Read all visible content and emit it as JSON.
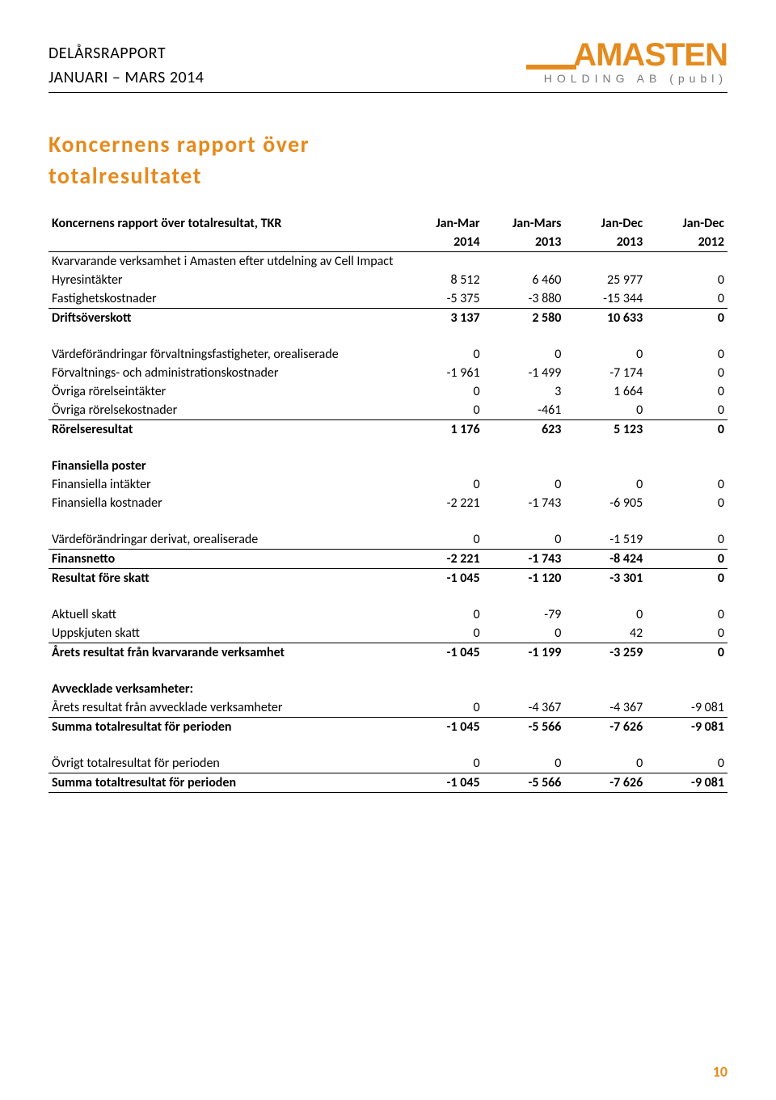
{
  "header": {
    "line1": "DELÅRSRAPPORT",
    "line2": "JANUARI – MARS 2014",
    "logo_main": "AMASTEN",
    "logo_sub": "HOLDING AB (publ)"
  },
  "section_title_l1": "Koncernens rapport över",
  "section_title_l2": "totalresultatet",
  "table": {
    "title": "Koncernens rapport över totalresultat, TKR",
    "col_top": [
      "Jan-Mar",
      "Jan-Mars",
      "Jan-Dec",
      "Jan-Dec"
    ],
    "col_bot": [
      "2014",
      "2013",
      "2013",
      "2012"
    ],
    "rows": [
      {
        "label": "Kvarvarande verksamhet i Amasten efter utdelning av Cell Impact",
        "v": [
          "",
          "",
          "",
          ""
        ],
        "cls": ""
      },
      {
        "label": "Hyresintäkter",
        "v": [
          "8 512",
          "6 460",
          "25 977",
          "0"
        ],
        "cls": ""
      },
      {
        "label": "Fastighetskostnader",
        "v": [
          "-5 375",
          "-3 880",
          "-15 344",
          "0"
        ],
        "cls": "border-bot"
      },
      {
        "label": "Driftsöverskott",
        "v": [
          "3 137",
          "2 580",
          "10 633",
          "0"
        ],
        "cls": "bold-row"
      },
      {
        "label": "",
        "v": [
          "",
          "",
          "",
          ""
        ],
        "cls": "spacer"
      },
      {
        "label": "Värdeförändringar förvaltningsfastigheter, orealiserade",
        "v": [
          "0",
          "0",
          "0",
          "0"
        ],
        "cls": ""
      },
      {
        "label": "Förvaltnings- och administrationskostnader",
        "v": [
          "-1 961",
          "-1 499",
          "-7 174",
          "0"
        ],
        "cls": ""
      },
      {
        "label": "Övriga rörelseintäkter",
        "v": [
          "0",
          "3",
          "1 664",
          "0"
        ],
        "cls": ""
      },
      {
        "label": "Övriga rörelsekostnader",
        "v": [
          "0",
          "-461",
          "0",
          "0"
        ],
        "cls": "border-bot"
      },
      {
        "label": "Rörelseresultat",
        "v": [
          "1 176",
          "623",
          "5 123",
          "0"
        ],
        "cls": "bold-row"
      },
      {
        "label": "",
        "v": [
          "",
          "",
          "",
          ""
        ],
        "cls": "spacer"
      },
      {
        "label": "Finansiella poster",
        "v": [
          "",
          "",
          "",
          ""
        ],
        "cls": "bold-row"
      },
      {
        "label": "Finansiella intäkter",
        "v": [
          "0",
          "0",
          "0",
          "0"
        ],
        "cls": ""
      },
      {
        "label": "Finansiella kostnader",
        "v": [
          "-2 221",
          "-1 743",
          "-6 905",
          "0"
        ],
        "cls": ""
      },
      {
        "label": "",
        "v": [
          "",
          "",
          "",
          ""
        ],
        "cls": "spacer"
      },
      {
        "label": "Värdeförändringar derivat, orealiserade",
        "v": [
          "0",
          "0",
          "-1 519",
          "0"
        ],
        "cls": "border-bot"
      },
      {
        "label": "Finansnetto",
        "v": [
          "-2 221",
          "-1 743",
          "-8 424",
          "0"
        ],
        "cls": "bold-row border-bot"
      },
      {
        "label": "Resultat före skatt",
        "v": [
          "-1 045",
          "-1 120",
          "-3 301",
          "0"
        ],
        "cls": "bold-row"
      },
      {
        "label": "",
        "v": [
          "",
          "",
          "",
          ""
        ],
        "cls": "spacer"
      },
      {
        "label": "Aktuell skatt",
        "v": [
          "0",
          "-79",
          "0",
          "0"
        ],
        "cls": ""
      },
      {
        "label": "Uppskjuten skatt",
        "v": [
          "0",
          "0",
          "42",
          "0"
        ],
        "cls": "border-bot"
      },
      {
        "label": "Årets resultat från kvarvarande verksamhet",
        "v": [
          "-1 045",
          "-1 199",
          "-3 259",
          "0"
        ],
        "cls": "bold-row"
      },
      {
        "label": "",
        "v": [
          "",
          "",
          "",
          ""
        ],
        "cls": "spacer"
      },
      {
        "label": "Avvecklade verksamheter:",
        "v": [
          "",
          "",
          "",
          ""
        ],
        "cls": "bold-row"
      },
      {
        "label": "Årets resultat från avvecklade verksamheter",
        "v": [
          "0",
          "-4 367",
          "-4 367",
          "-9 081"
        ],
        "cls": "border-bot"
      },
      {
        "label": "Summa totalresultat för perioden",
        "v": [
          "-1 045",
          "-5 566",
          "-7 626",
          "-9 081"
        ],
        "cls": "bold-row"
      },
      {
        "label": "",
        "v": [
          "",
          "",
          "",
          ""
        ],
        "cls": "spacer"
      },
      {
        "label": "Övrigt totalresultat för perioden",
        "v": [
          "0",
          "0",
          "0",
          "0"
        ],
        "cls": "border-bot"
      },
      {
        "label": "Summa totaltresultat för perioden",
        "v": [
          "-1 045",
          "-5 566",
          "-7 626",
          "-9 081"
        ],
        "cls": "bold-row border-bot"
      }
    ]
  },
  "page_number": "10",
  "colors": {
    "accent": "#e58a1c",
    "text": "#000000",
    "logo_sub": "#777777"
  }
}
